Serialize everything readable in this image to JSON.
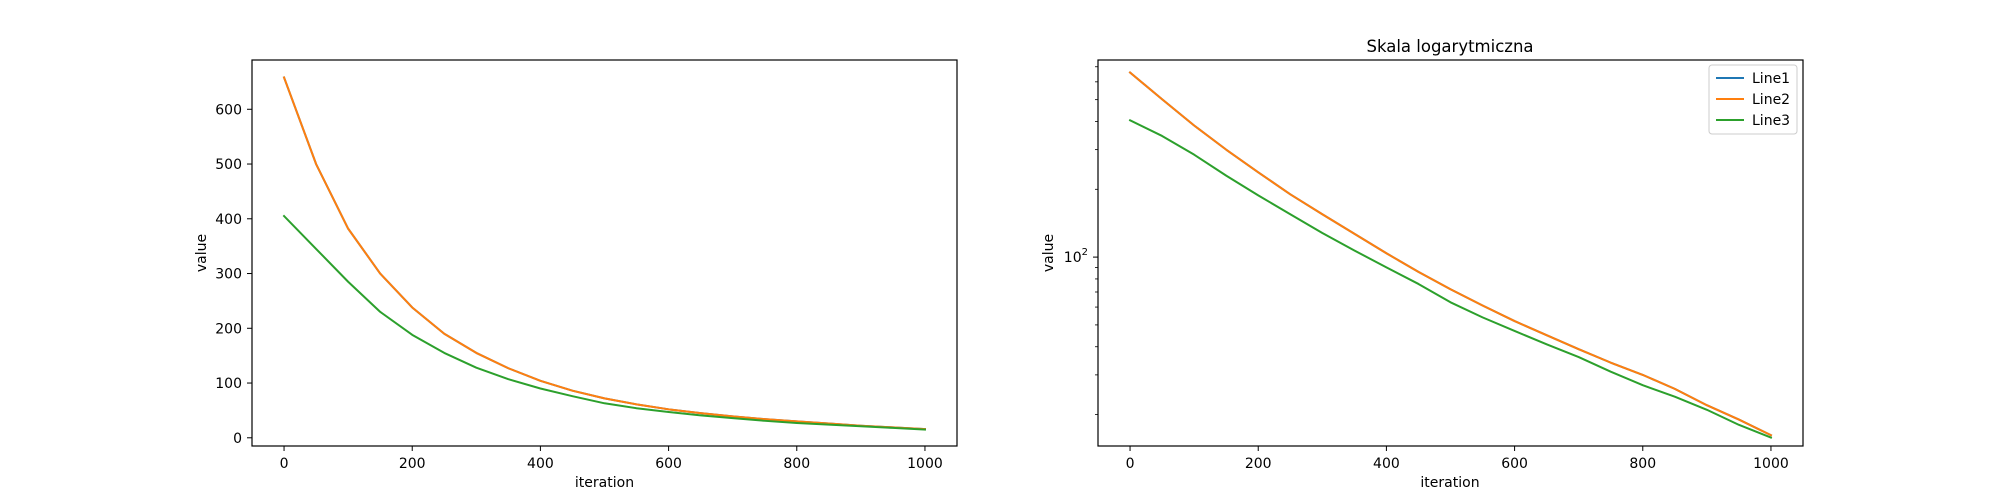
{
  "chart_data": [
    {
      "type": "line",
      "title": "",
      "xlabel": "iteration",
      "ylabel": "value",
      "xlim": [
        -50,
        1050
      ],
      "ylim": [
        -15,
        690
      ],
      "yscale": "linear",
      "xticks": [
        0,
        200,
        400,
        600,
        800,
        1000
      ],
      "yticks": [
        0,
        100,
        200,
        300,
        400,
        500,
        600
      ],
      "grid": false,
      "legend": "none",
      "x": [
        0,
        50,
        100,
        150,
        200,
        250,
        300,
        350,
        400,
        450,
        500,
        550,
        600,
        650,
        700,
        750,
        800,
        850,
        900,
        950,
        1000
      ],
      "series": [
        {
          "name": "Line1",
          "color": "#1f77b4",
          "values": [
            658,
            500,
            382,
            300,
            238,
            190,
            155,
            127,
            104,
            86,
            72,
            61,
            52,
            45,
            39,
            34,
            30,
            26,
            22,
            19,
            16
          ]
        },
        {
          "name": "Line2",
          "color": "#ff7f0e",
          "values": [
            658,
            500,
            382,
            300,
            238,
            190,
            155,
            127,
            104,
            86,
            72,
            61,
            52,
            45,
            39,
            34,
            30,
            26,
            22,
            19,
            16
          ]
        },
        {
          "name": "Line3",
          "color": "#2ca02c",
          "values": [
            405,
            345,
            285,
            230,
            188,
            155,
            128,
            107,
            90,
            76,
            63,
            54,
            47,
            41,
            36,
            31,
            27,
            24,
            21,
            18,
            15
          ]
        }
      ]
    },
    {
      "type": "line",
      "title": "Skala logarytmiczna",
      "xlabel": "iteration",
      "ylabel": "value",
      "xlim": [
        -50,
        1050
      ],
      "ylim": [
        14.5,
        750
      ],
      "yscale": "log",
      "xticks": [
        0,
        200,
        400,
        600,
        800,
        1000
      ],
      "ymajor_ticks": [
        {
          "value": 100,
          "base": "10",
          "exp": "2"
        }
      ],
      "yminor_ticks": [
        20,
        30,
        40,
        50,
        60,
        70,
        80,
        90,
        200,
        300,
        400,
        500,
        600,
        700
      ],
      "grid": false,
      "legend": "top-right",
      "x": [
        0,
        50,
        100,
        150,
        200,
        250,
        300,
        350,
        400,
        450,
        500,
        550,
        600,
        650,
        700,
        750,
        800,
        850,
        900,
        950,
        1000
      ],
      "series": [
        {
          "name": "Line1",
          "color": "#1f77b4",
          "values": [
            660,
            502,
            384,
            300,
            238,
            190,
            155,
            127,
            104,
            86,
            72,
            61,
            52,
            45,
            39,
            34,
            30,
            26,
            22,
            19,
            16.2
          ]
        },
        {
          "name": "Line2",
          "color": "#ff7f0e",
          "values": [
            660,
            502,
            384,
            300,
            238,
            190,
            155,
            127,
            104,
            86,
            72,
            61,
            52,
            45,
            39,
            34,
            30,
            26,
            22,
            19,
            16.2
          ]
        },
        {
          "name": "Line3",
          "color": "#2ca02c",
          "values": [
            405,
            345,
            285,
            230,
            188,
            155,
            128,
            107,
            90,
            76,
            63,
            54,
            47,
            41,
            36,
            31,
            27,
            24,
            21,
            18,
            15.8
          ]
        }
      ]
    }
  ]
}
